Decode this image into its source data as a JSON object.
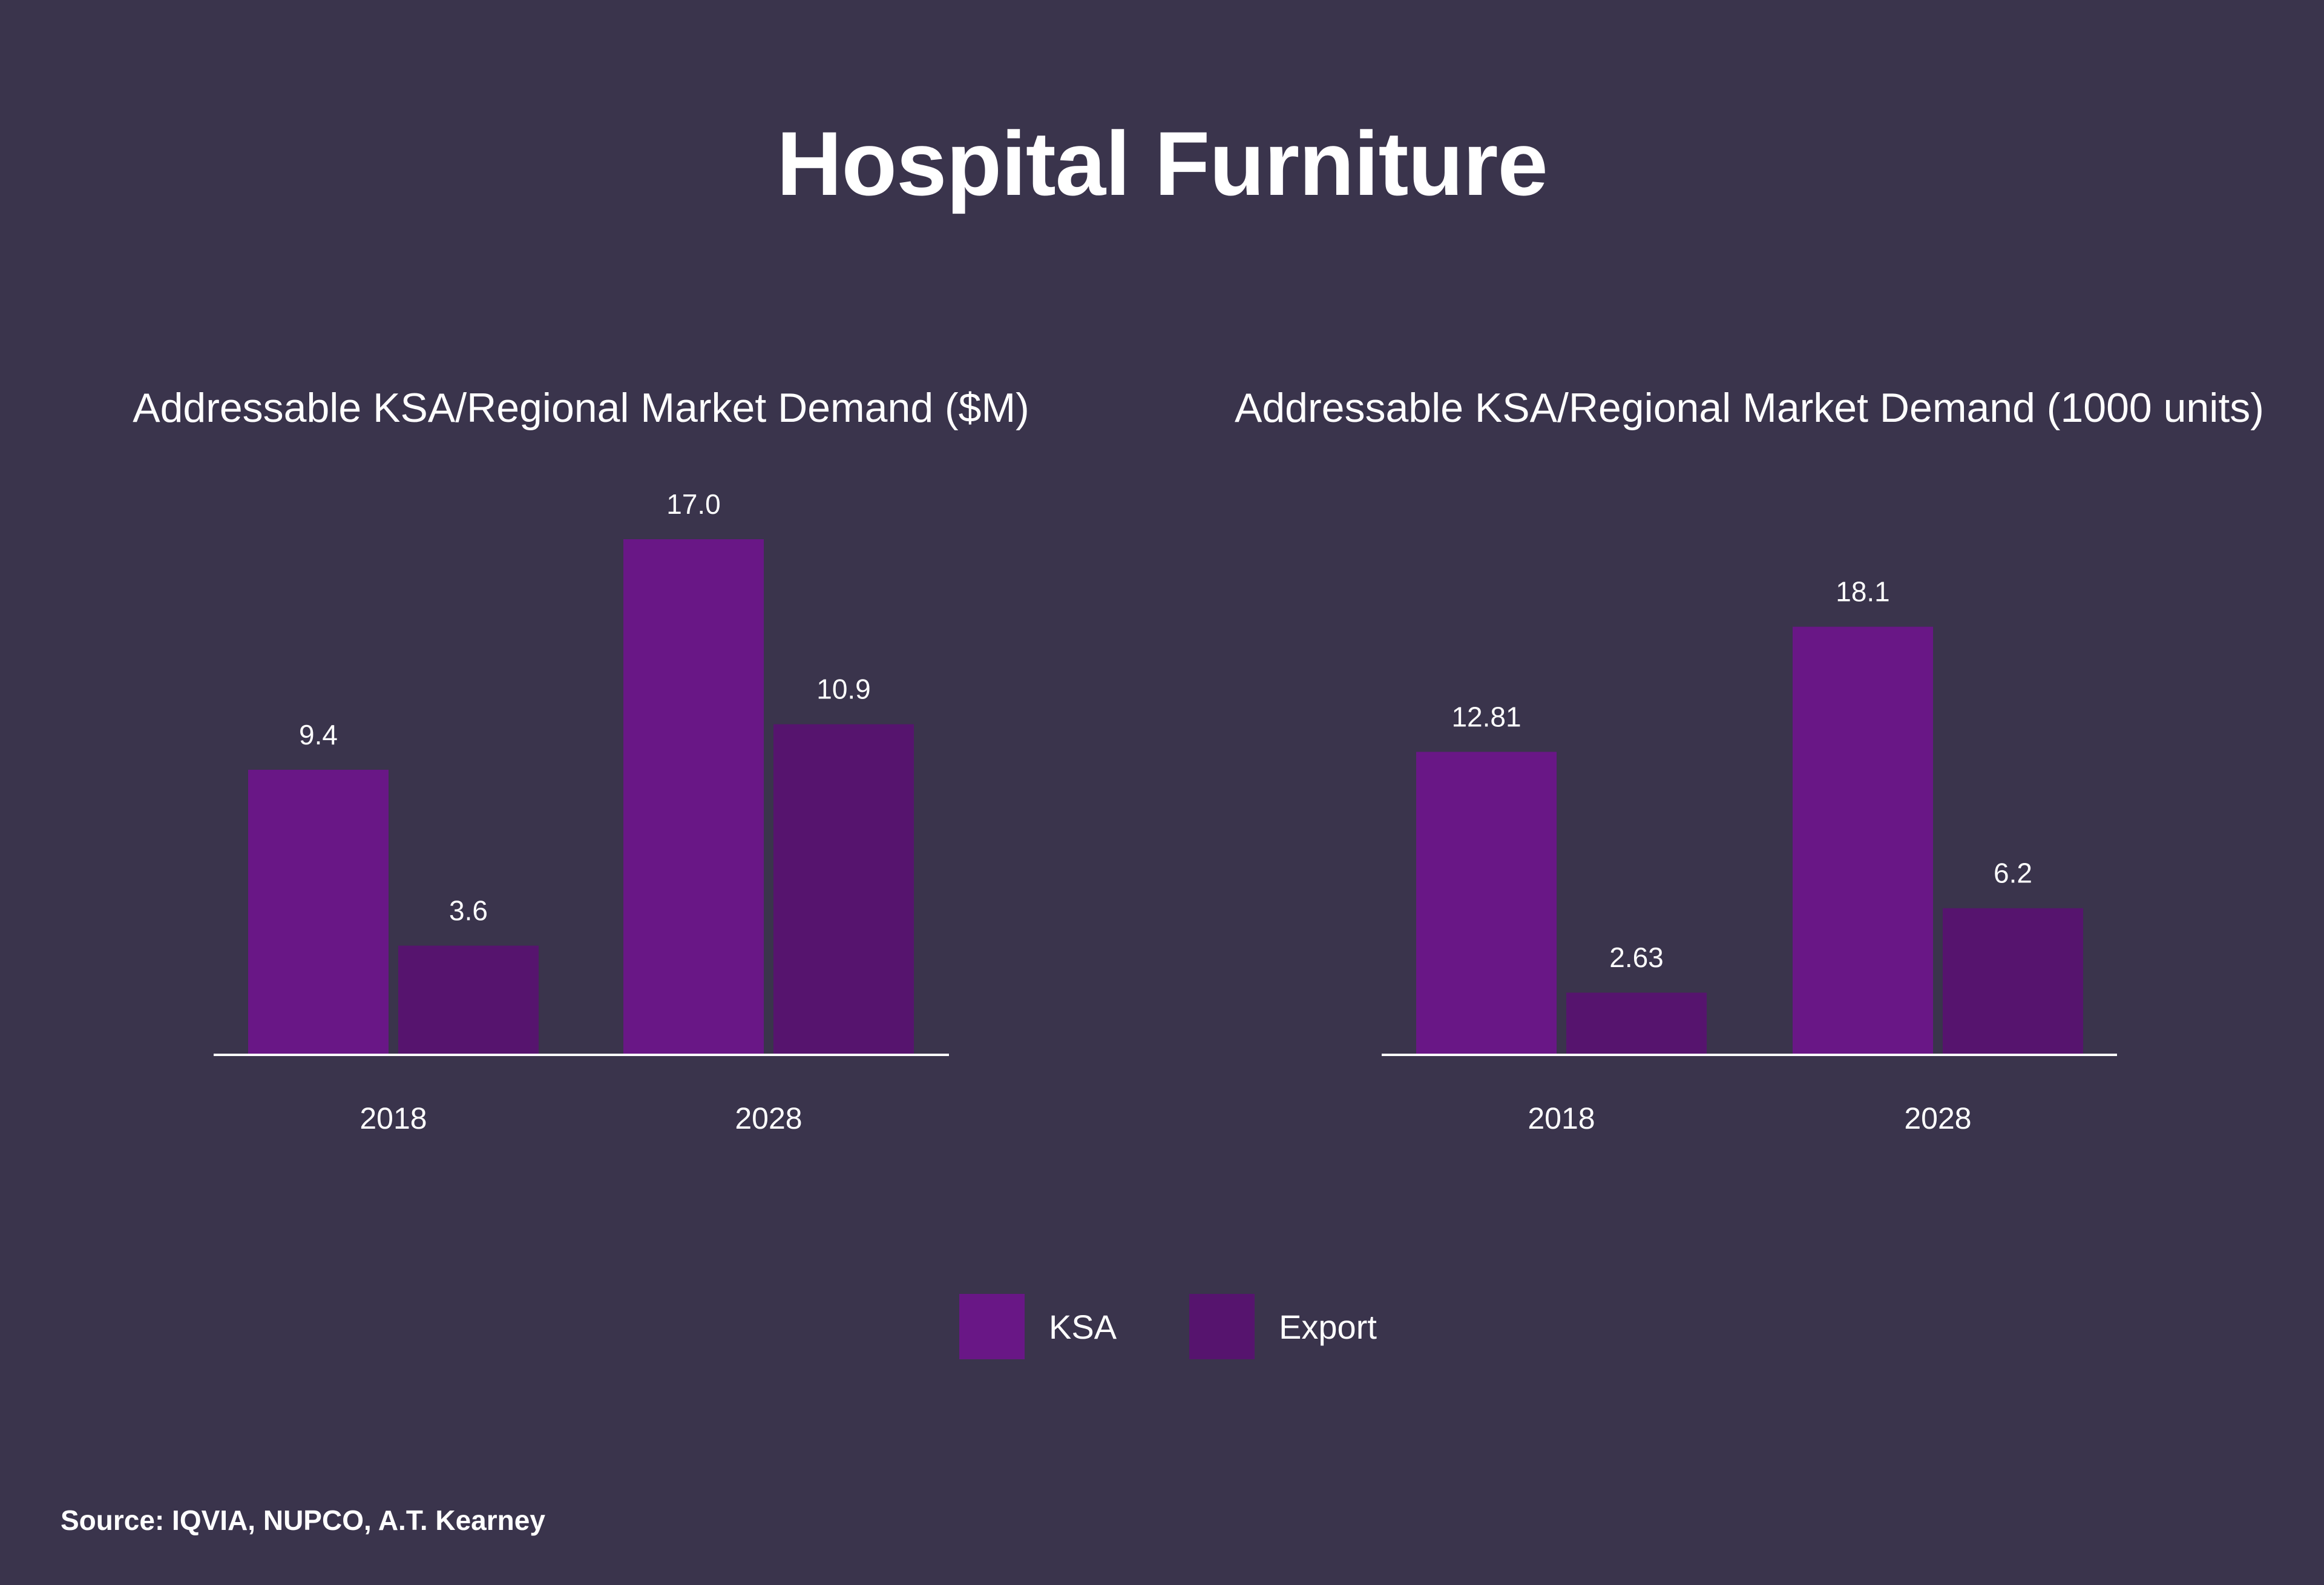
{
  "title": "Hospital Furniture",
  "colors": {
    "background": "#3a344c",
    "ksa": "#691786",
    "export": "#56146e",
    "axis": "#ffffff"
  },
  "legend": [
    {
      "label": "KSA",
      "color": "#691786"
    },
    {
      "label": "Export",
      "color": "#56146e"
    }
  ],
  "source": "Source: IQVIA, NUPCO, A.T. Kearney",
  "chart_data": [
    {
      "type": "bar",
      "title": "Addressable KSA/Regional Market Demand ($M)",
      "categories": [
        "2018",
        "2028"
      ],
      "series": [
        {
          "name": "KSA",
          "values": [
            9.4,
            17.0
          ],
          "labels": [
            "9.4",
            "17.0"
          ]
        },
        {
          "name": "Export",
          "values": [
            3.6,
            10.9
          ],
          "labels": [
            "3.6",
            "10.9"
          ]
        }
      ],
      "xlabel": "",
      "ylabel": "",
      "ylim": [
        0,
        17.0
      ],
      "grid": false,
      "legend": "bottom-center"
    },
    {
      "type": "bar",
      "title": "Addressable KSA/Regional Market Demand (1000 units)",
      "categories": [
        "2018",
        "2028"
      ],
      "series": [
        {
          "name": "KSA",
          "values": [
            12.81,
            18.1
          ],
          "labels": [
            "12.81",
            "18.1"
          ]
        },
        {
          "name": "Export",
          "values": [
            2.63,
            6.2
          ],
          "labels": [
            "2.63",
            "6.2"
          ]
        }
      ],
      "xlabel": "",
      "ylabel": "",
      "ylim": [
        0,
        21.8
      ],
      "grid": false,
      "legend": "bottom-center"
    }
  ]
}
